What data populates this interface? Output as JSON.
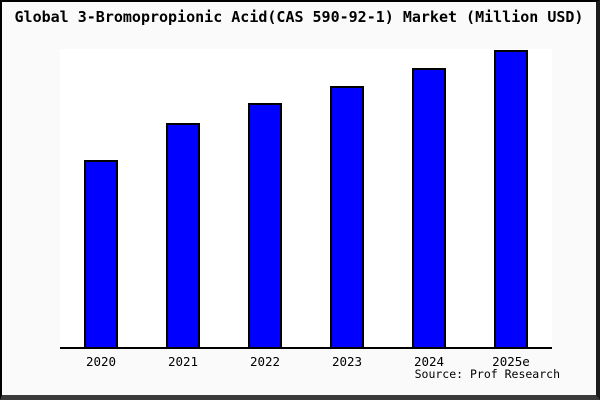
{
  "page": {
    "title": "Global 3-Bromopropionic Acid(CAS 590-92-1) Market (Million USD)",
    "source_credit": "Source: Prof Research"
  },
  "chart_data": {
    "type": "bar",
    "title": "Global 3-Bromopropionic Acid(CAS 590-92-1) Market (Million USD)",
    "categories": [
      "2020",
      "2021",
      "2022",
      "2023",
      "2024",
      "2025e"
    ],
    "values": [
      63,
      75.5,
      82,
      88,
      94,
      100
    ],
    "xlabel": "",
    "ylabel": "",
    "ylim": [
      0,
      101
    ],
    "grid": false,
    "legend": false,
    "y_axis_shown": false,
    "source": "Source: Prof Research"
  },
  "colors": {
    "bar_fill": "#0000fe",
    "bar_border": "#000000",
    "axis": "#000000",
    "frame_background": "#fafafa",
    "plot_background": "#ffffff",
    "text": "#000000"
  }
}
